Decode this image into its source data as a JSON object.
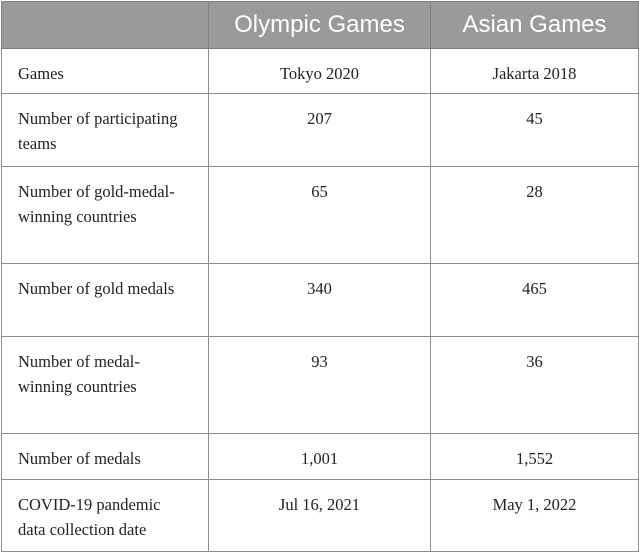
{
  "table": {
    "headers": [
      "",
      "Olympic Games",
      "Asian Games"
    ],
    "rows": [
      [
        "Games",
        "Tokyo 2020",
        "Jakarta 2018"
      ],
      [
        "Number of participating teams",
        "207",
        "45"
      ],
      [
        "Number of gold-medal-winning countries",
        "65",
        "28"
      ],
      [
        "Number of gold medals",
        "340",
        "465"
      ],
      [
        "Number of medal-winning countries",
        "93",
        "36"
      ],
      [
        "Number of medals",
        "1,001",
        "1,552"
      ],
      [
        "COVID-19 pandemic data collection date",
        "Jul 16, 2021",
        "May 1, 2022"
      ]
    ]
  }
}
